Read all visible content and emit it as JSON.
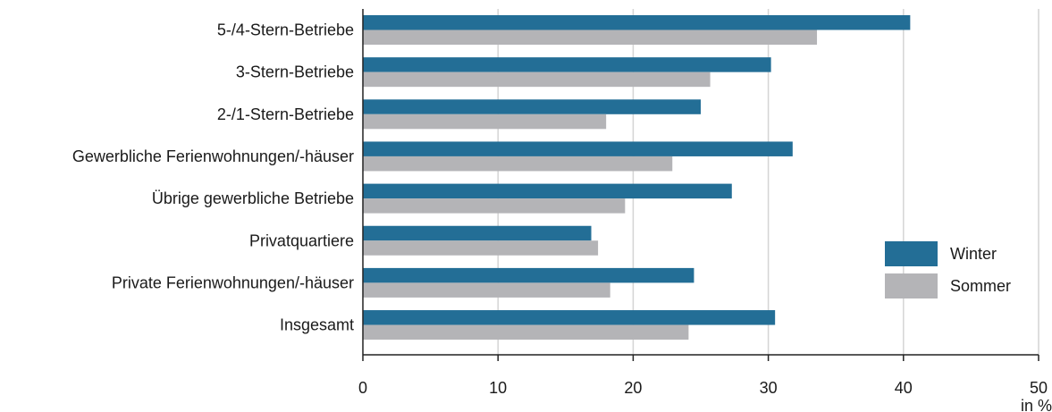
{
  "chart_data": {
    "type": "bar",
    "orientation": "horizontal",
    "categories": [
      "5-/4-Stern-Betriebe",
      "3-Stern-Betriebe",
      "2-/1-Stern-Betriebe",
      "Gewerbliche Ferienwohnungen/-häuser",
      "Übrige gewerbliche Betriebe",
      "Privatquartiere",
      "Private Ferienwohnungen/-häuser",
      "Insgesamt"
    ],
    "series": [
      {
        "name": "Winter",
        "color": "#236e96",
        "values": [
          40.5,
          30.2,
          25.0,
          31.8,
          27.3,
          16.9,
          24.5,
          30.5
        ]
      },
      {
        "name": "Sommer",
        "color": "#b4b4b7",
        "values": [
          33.6,
          25.7,
          18.0,
          22.9,
          19.4,
          17.4,
          18.3,
          24.1
        ]
      }
    ],
    "xlabel": "in %",
    "xlim": [
      0,
      50
    ],
    "xticks": [
      "0",
      "10",
      "20",
      "30",
      "40",
      "50"
    ],
    "grid": true,
    "legend_position": "right"
  }
}
